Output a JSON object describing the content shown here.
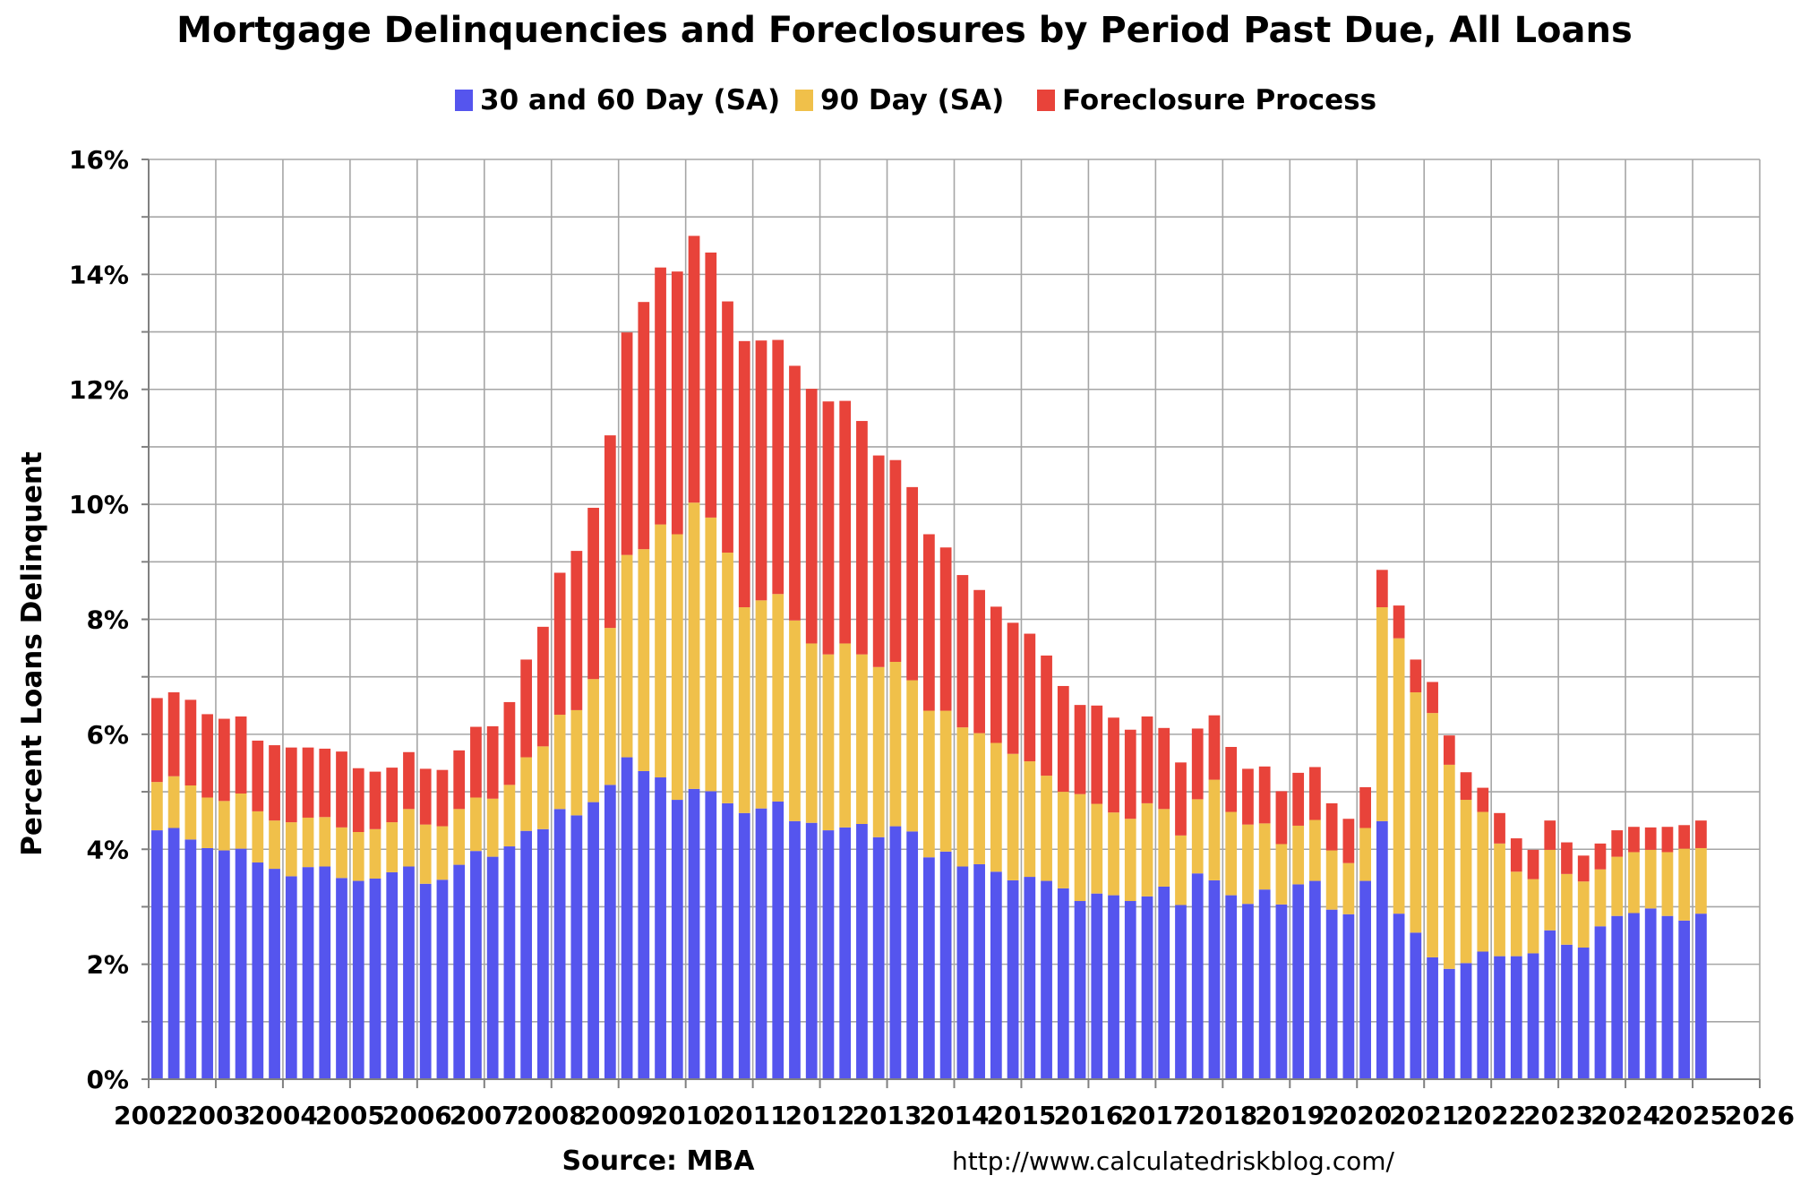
{
  "chart_data": {
    "type": "bar",
    "stacked": true,
    "title": "Mortgage Delinquencies and Foreclosures by Period Past Due, All Loans",
    "ylabel": "Percent Loans Delinquent",
    "xlabel": "",
    "ylim": [
      0,
      16
    ],
    "xlim": [
      2002,
      2026
    ],
    "yticks": [
      "0%",
      "2%",
      "4%",
      "6%",
      "8%",
      "10%",
      "12%",
      "14%",
      "16%"
    ],
    "xticks": [
      "2002",
      "2003",
      "2004",
      "2005",
      "2006",
      "2007",
      "2008",
      "2009",
      "2010",
      "2011",
      "2012",
      "2013",
      "2014",
      "2015",
      "2016",
      "2017",
      "2018",
      "2019",
      "2020",
      "2021",
      "2022",
      "2023",
      "2024",
      "2025",
      "2026"
    ],
    "grid": true,
    "legend_position": "top",
    "source": "Source: MBA",
    "url": "http://www.calculatedriskblog.com/",
    "x": [
      "2002 Q1",
      "2002 Q2",
      "2002 Q3",
      "2002 Q4",
      "2003 Q1",
      "2003 Q2",
      "2003 Q3",
      "2003 Q4",
      "2004 Q1",
      "2004 Q2",
      "2004 Q3",
      "2004 Q4",
      "2005 Q1",
      "2005 Q2",
      "2005 Q3",
      "2005 Q4",
      "2006 Q1",
      "2006 Q2",
      "2006 Q3",
      "2006 Q4",
      "2007 Q1",
      "2007 Q2",
      "2007 Q3",
      "2007 Q4",
      "2008 Q1",
      "2008 Q2",
      "2008 Q3",
      "2008 Q4",
      "2009 Q1",
      "2009 Q2",
      "2009 Q3",
      "2009 Q4",
      "2010 Q1",
      "2010 Q2",
      "2010 Q3",
      "2010 Q4",
      "2011 Q1",
      "2011 Q2",
      "2011 Q3",
      "2011 Q4",
      "2012 Q1",
      "2012 Q2",
      "2012 Q3",
      "2012 Q4",
      "2013 Q1",
      "2013 Q2",
      "2013 Q3",
      "2013 Q4",
      "2014 Q1",
      "2014 Q2",
      "2014 Q3",
      "2014 Q4",
      "2015 Q1",
      "2015 Q2",
      "2015 Q3",
      "2015 Q4",
      "2016 Q1",
      "2016 Q2",
      "2016 Q3",
      "2016 Q4",
      "2017 Q1",
      "2017 Q2",
      "2017 Q3",
      "2017 Q4",
      "2018 Q1",
      "2018 Q2",
      "2018 Q3",
      "2018 Q4",
      "2019 Q1",
      "2019 Q2",
      "2019 Q3",
      "2019 Q4",
      "2020 Q1",
      "2020 Q2",
      "2020 Q3",
      "2020 Q4",
      "2021 Q1",
      "2021 Q2",
      "2021 Q3",
      "2021 Q4",
      "2022 Q1",
      "2022 Q2",
      "2022 Q3",
      "2022 Q4",
      "2023 Q1",
      "2023 Q2",
      "2023 Q3",
      "2023 Q4",
      "2024 Q1",
      "2024 Q2",
      "2024 Q3",
      "2024 Q4",
      "2025 Q1"
    ],
    "series": [
      {
        "name": "30 and 60 Day (SA)",
        "color": "#5555ee",
        "values": [
          4.33,
          4.37,
          4.17,
          4.02,
          3.98,
          4.01,
          3.77,
          3.66,
          3.53,
          3.69,
          3.7,
          3.5,
          3.45,
          3.49,
          3.6,
          3.7,
          3.4,
          3.47,
          3.73,
          3.97,
          3.87,
          4.05,
          4.32,
          4.35,
          4.7,
          4.59,
          4.82,
          5.12,
          5.6,
          5.36,
          5.25,
          4.86,
          5.05,
          5.01,
          4.8,
          4.63,
          4.71,
          4.83,
          4.49,
          4.46,
          4.33,
          4.38,
          4.44,
          4.21,
          4.4,
          4.31,
          3.86,
          3.96,
          3.7,
          3.74,
          3.61,
          3.46,
          3.52,
          3.45,
          3.32,
          3.1,
          3.23,
          3.2,
          3.1,
          3.18,
          3.35,
          3.03,
          3.58,
          3.46,
          3.2,
          3.05,
          3.3,
          3.04,
          3.39,
          3.45,
          2.95,
          2.87,
          3.45,
          4.49,
          2.88,
          2.55,
          2.12,
          1.92,
          2.02,
          2.22,
          2.14,
          2.14,
          2.19,
          2.59,
          2.34,
          2.29,
          2.66,
          2.84,
          2.89,
          2.97,
          2.84,
          2.76,
          2.88
        ]
      },
      {
        "name": "90 Day (SA)",
        "color": "#f0c04a",
        "values": [
          0.84,
          0.9,
          0.94,
          0.88,
          0.86,
          0.96,
          0.89,
          0.84,
          0.94,
          0.86,
          0.86,
          0.88,
          0.85,
          0.86,
          0.87,
          1.0,
          1.03,
          0.93,
          0.97,
          0.93,
          1.01,
          1.07,
          1.28,
          1.44,
          1.64,
          1.83,
          2.14,
          2.73,
          3.52,
          3.86,
          4.4,
          4.62,
          4.98,
          4.76,
          4.36,
          3.58,
          3.62,
          3.61,
          3.49,
          3.12,
          3.06,
          3.2,
          2.95,
          2.96,
          2.86,
          2.63,
          2.55,
          2.45,
          2.42,
          2.28,
          2.24,
          2.2,
          2.01,
          1.83,
          1.68,
          1.86,
          1.56,
          1.44,
          1.43,
          1.62,
          1.35,
          1.21,
          1.29,
          1.75,
          1.45,
          1.38,
          1.15,
          1.05,
          1.02,
          1.06,
          1.03,
          0.89,
          0.92,
          3.72,
          4.79,
          4.18,
          4.25,
          3.55,
          2.84,
          2.43,
          1.96,
          1.47,
          1.29,
          1.4,
          1.23,
          1.15,
          0.99,
          1.03,
          1.06,
          1.02,
          1.11,
          1.25,
          1.14
        ]
      },
      {
        "name": "Foreclosure Process",
        "color": "#e8433a",
        "values": [
          1.46,
          1.46,
          1.49,
          1.45,
          1.43,
          1.34,
          1.23,
          1.31,
          1.3,
          1.22,
          1.19,
          1.32,
          1.11,
          1.0,
          0.95,
          0.99,
          0.97,
          0.98,
          1.02,
          1.23,
          1.26,
          1.44,
          1.7,
          2.08,
          2.47,
          2.77,
          2.98,
          3.35,
          3.87,
          4.3,
          4.47,
          4.57,
          4.64,
          4.61,
          4.37,
          4.63,
          4.52,
          4.42,
          4.43,
          4.43,
          4.4,
          4.22,
          4.06,
          3.68,
          3.51,
          3.36,
          3.07,
          2.84,
          2.65,
          2.49,
          2.37,
          2.28,
          2.22,
          2.09,
          1.84,
          1.55,
          1.71,
          1.65,
          1.55,
          1.51,
          1.41,
          1.27,
          1.23,
          1.12,
          1.13,
          0.97,
          0.99,
          0.92,
          0.92,
          0.92,
          0.82,
          0.77,
          0.71,
          0.65,
          0.57,
          0.57,
          0.54,
          0.51,
          0.48,
          0.42,
          0.53,
          0.58,
          0.51,
          0.51,
          0.55,
          0.45,
          0.45,
          0.46,
          0.44,
          0.39,
          0.44,
          0.41,
          0.48
        ]
      }
    ]
  }
}
